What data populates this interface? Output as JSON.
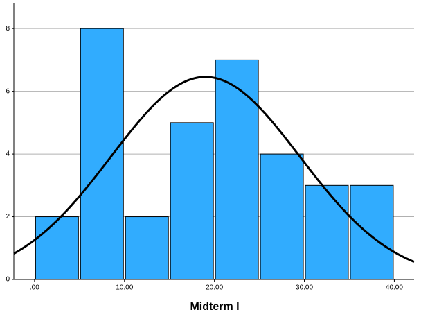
{
  "chart_data": {
    "type": "histogram",
    "x_label": "Midterm I",
    "bins": [
      0,
      5,
      10,
      15,
      20,
      25,
      30,
      35,
      40
    ],
    "values": [
      2,
      8,
      2,
      5,
      7,
      4,
      3,
      3
    ],
    "color": "#31acfe",
    "xlim": [
      -2.3,
      42.2
    ],
    "ylim": [
      0,
      8.8
    ],
    "xticks": [
      {
        "value": 0,
        "label": ".00"
      },
      {
        "value": 10,
        "label": "10.00"
      },
      {
        "value": 20,
        "label": "20.00"
      },
      {
        "value": 30,
        "label": "30.00"
      },
      {
        "value": 40,
        "label": "40.00"
      }
    ],
    "yticks": [
      0,
      2,
      4,
      6,
      8
    ],
    "grid": true,
    "curve": {
      "mean": 19.0,
      "sd": 10.5
    }
  }
}
